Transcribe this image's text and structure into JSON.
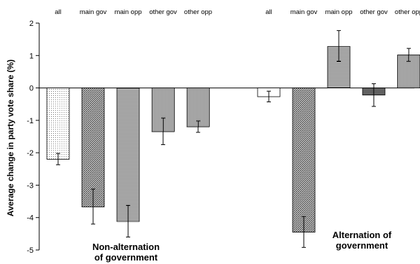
{
  "chart_data": {
    "type": "bar",
    "ylabel": "Average change in party vote share (%)",
    "ylim": [
      -5,
      2
    ],
    "yticks": [
      2,
      1,
      0,
      -1,
      -2,
      -3,
      -4,
      -5
    ],
    "grid": false,
    "groups": [
      {
        "label_lines": [
          "Non-alternation",
          "of government"
        ],
        "categories": [
          "all",
          "main gov",
          "main opp",
          "other gov",
          "other opp"
        ],
        "values": [
          -2.2,
          -3.67,
          -4.12,
          -1.35,
          -1.2
        ],
        "error_low": [
          -2.37,
          -4.2,
          -4.6,
          -1.75,
          -1.37
        ],
        "error_high": [
          -2.02,
          -3.12,
          -3.62,
          -0.93,
          -1.02
        ],
        "patterns": [
          "dots",
          "crosshatch",
          "hlines",
          "vlines",
          "vlines"
        ]
      },
      {
        "label_lines": [
          "Alternation of",
          "government"
        ],
        "categories": [
          "all",
          "main gov",
          "main opp",
          "other gov",
          "other opp"
        ],
        "values": [
          -0.27,
          -4.45,
          1.28,
          -0.22,
          1.02
        ],
        "error_low": [
          -0.43,
          -4.92,
          0.82,
          -0.57,
          0.82
        ],
        "error_high": [
          -0.1,
          -3.97,
          1.77,
          0.13,
          1.22
        ],
        "patterns": [
          "blank",
          "crosshatch",
          "hlines",
          "crossdark",
          "vlines"
        ]
      }
    ]
  }
}
